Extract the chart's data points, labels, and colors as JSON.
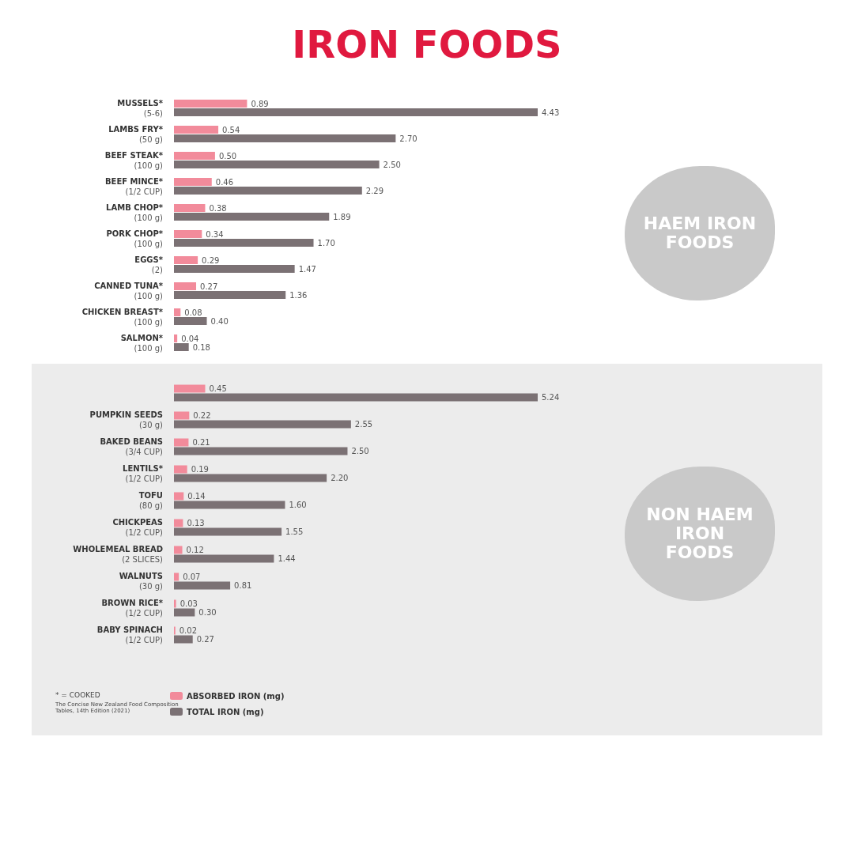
{
  "chart_data": [
    {
      "type": "bar",
      "orientation": "horizontal",
      "title": "IRON FOODS",
      "categories": [
        "MUSSELS*\n(5-6)",
        "LAMBS FRY*\n(50 g)",
        "BEEF STEAK*\n(100 g)",
        "BEEF MINCE*\n(1/2 CUP)",
        "LAMB CHOP*\n(100 g)",
        "PORK CHOP*\n(100 g)",
        "EGGS*\n(2)",
        "CANNED TUNA*\n(100 g)",
        "CHICKEN BREAST*\n(100 g)",
        "SALMON*\n(100 g)"
      ],
      "series": [
        {
          "color": "#f28b9b",
          "values": [
            0.89,
            0.54,
            0.5,
            0.46,
            0.38,
            0.34,
            0.29,
            0.27,
            0.08,
            0.04
          ],
          "value_labels": [
            "0.89",
            "0.54",
            "0.50",
            "0.46",
            "0.38",
            "0.34",
            "0.29",
            "0.27",
            "0.08",
            "0.04"
          ]
        },
        {
          "color": "#7b7174",
          "values": [
            4.43,
            2.7,
            2.5,
            2.29,
            1.89,
            1.7,
            1.47,
            1.36,
            0.4,
            0.18
          ],
          "value_labels": [
            "4.43",
            "2.70",
            "2.50",
            "2.29",
            "1.89",
            "1.70",
            "1.47",
            "1.36",
            "0.40",
            "0.18"
          ]
        }
      ],
      "tick_labels": "y",
      "legend": false,
      "annotations": [
        "HAEM IRON FOODS"
      ]
    },
    {
      "type": "bar",
      "orientation": "horizontal",
      "categories": [
        null,
        "PUMPKIN SEEDS\n(30 g)",
        "BAKED BEANS\n(3/4 CUP)",
        "LENTILS*\n(1/2 CUP)",
        "TOFU\n(80 g)",
        "CHICKPEAS\n(1/2 CUP)",
        "WHOLEMEAL BREAD\n(2 SLICES)",
        "WALNUTS\n(30 g)",
        "BROWN RICE*\n(1/2 CUP)",
        "BABY SPINACH\n(1/2 CUP)"
      ],
      "series": [
        {
          "name": "ABSORBED IRON (mg)",
          "color": "#f28b9b",
          "values": [
            0.45,
            0.22,
            0.21,
            0.19,
            0.14,
            0.13,
            0.12,
            0.07,
            0.03,
            0.02
          ],
          "value_labels": [
            "0.45",
            "0.22",
            "0.21",
            "0.19",
            "0.14",
            "0.13",
            "0.12",
            "0.07",
            "0.03",
            "0.02"
          ]
        },
        {
          "name": "TOTAL IRON (mg)",
          "color": "#7b7174",
          "values": [
            5.24,
            2.55,
            2.5,
            2.2,
            1.6,
            1.55,
            1.44,
            0.81,
            0.3,
            0.27
          ],
          "value_labels": [
            "5.24",
            "2.55",
            "2.50",
            "2.20",
            "1.60",
            "1.55",
            "1.44",
            "0.81",
            "0.30",
            "0.27"
          ]
        }
      ],
      "tick_labels": "y",
      "legend": "bottom",
      "annotations": [
        "NON HAEM IRON FOODS",
        "* = COOKED",
        "The Concise New Zealand Food Composition Tables, 14th Edition (2021)"
      ]
    }
  ]
}
